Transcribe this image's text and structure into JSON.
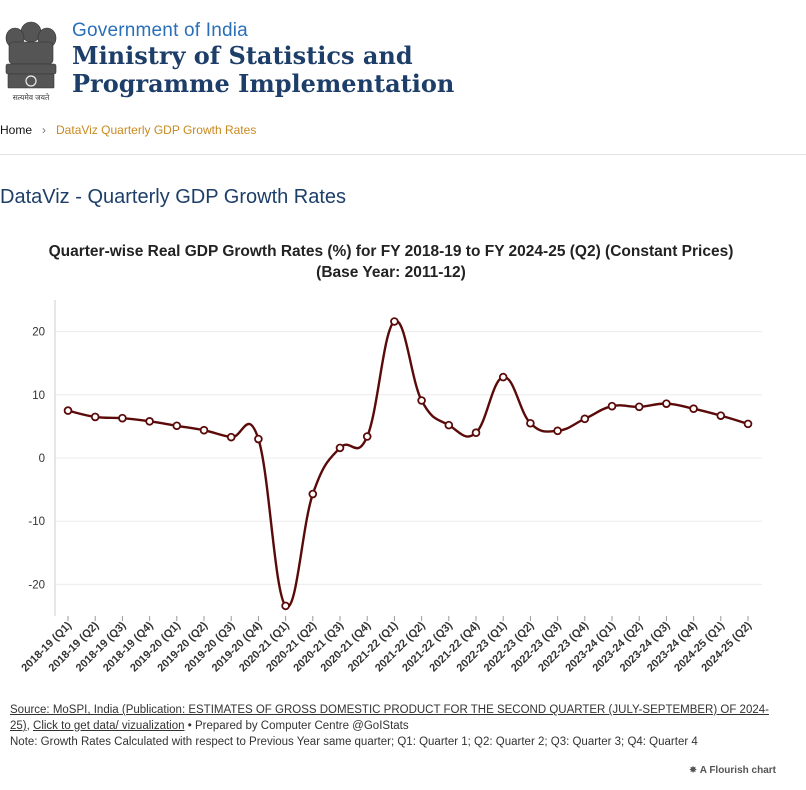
{
  "header": {
    "gov_line": "Government of India",
    "ministry_line1": "Ministry of Statistics and",
    "ministry_line2": "Programme Implementation",
    "emblem_caption": "सत्यमेव जयते"
  },
  "breadcrumb": {
    "home": "Home",
    "separator": "›",
    "current": "DataViz Quarterly GDP Growth Rates"
  },
  "page_title": "DataViz - Quarterly GDP Growth Rates",
  "chart_data": {
    "type": "line",
    "title_line1": "Quarter-wise Real GDP Growth Rates (%) for FY 2018-19 to FY 2024-25 (Q2) (Constant Prices)",
    "title_line2": "(Base Year: 2011-12)",
    "xlabel": "",
    "ylabel": "",
    "ylim": [
      -25,
      25
    ],
    "yticks": [
      -20,
      -10,
      0,
      10,
      20
    ],
    "categories": [
      "2018-19 (Q1)",
      "2018-19 (Q2)",
      "2018-19 (Q3)",
      "2018-19 (Q4)",
      "2019-20 (Q1)",
      "2019-20 (Q2)",
      "2019-20 (Q3)",
      "2019-20 (Q4)",
      "2020-21 (Q1)",
      "2020-21 (Q2)",
      "2020-21 (Q3)",
      "2020-21 (Q4)",
      "2021-22 (Q1)",
      "2021-22 (Q2)",
      "2021-22 (Q3)",
      "2021-22 (Q4)",
      "2022-23 (Q1)",
      "2022-23 (Q2)",
      "2022-23 (Q3)",
      "2022-23 (Q4)",
      "2023-24 (Q1)",
      "2023-24 (Q2)",
      "2023-24 (Q3)",
      "2023-24 (Q4)",
      "2024-25 (Q1)",
      "2024-25 (Q2)"
    ],
    "series": [
      {
        "values": [
          7.5,
          6.5,
          6.3,
          5.8,
          5.1,
          4.4,
          3.3,
          3.0,
          -23.4,
          -5.7,
          1.6,
          3.4,
          21.6,
          9.1,
          5.2,
          4.0,
          12.8,
          5.5,
          4.3,
          6.2,
          8.2,
          8.1,
          8.6,
          7.8,
          6.7,
          5.4
        ],
        "color": "#5b0a0a"
      }
    ],
    "grid": true
  },
  "footer": {
    "source_prefix": "Source: ",
    "source_link": "Source: MoSPI, India (Publication: ESTIMATES OF GROSS DOMESTIC PRODUCT FOR THE SECOND QUARTER (JULY-SEPTEMBER) OF 2024-25)",
    "data_link": "Click to get data/ vizualization",
    "prepared": "• Prepared by Computer Centre @GoIStats",
    "note": "Note: Growth Rates Calculated with respect to Previous Year same quarter; Q1: Quarter 1; Q2: Quarter 2; Q3: Quarter 3; Q4: Quarter 4"
  },
  "flourish": {
    "label": "A Flourish chart",
    "icon": "flourish-star-icon"
  }
}
